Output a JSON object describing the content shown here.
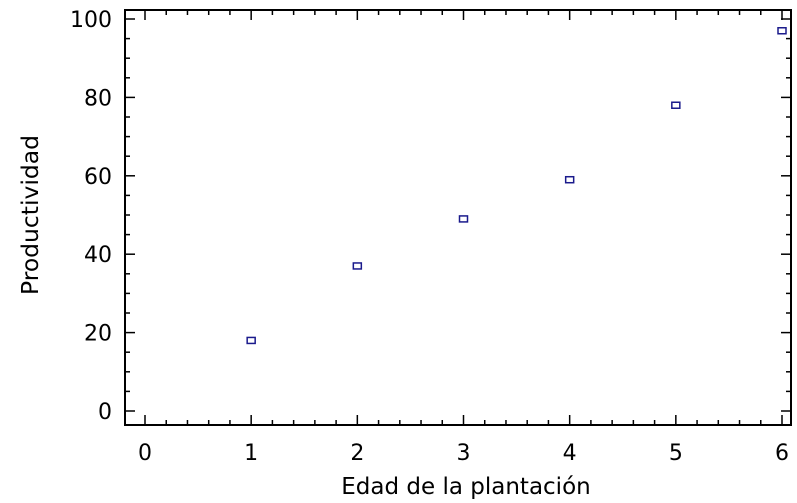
{
  "chart_data": {
    "type": "scatter",
    "title": "",
    "xlabel": "Edad de la plantación",
    "ylabel": "Productividad",
    "xlim": [
      0,
      6
    ],
    "ylim": [
      0,
      100
    ],
    "x_ticks": [
      "0",
      "1",
      "2",
      "3",
      "4",
      "5",
      "6"
    ],
    "y_ticks": [
      "0",
      "20",
      "40",
      "60",
      "80",
      "100"
    ],
    "grid": false,
    "legend": "none",
    "marker": "square-open",
    "marker_color": "#1a1a8c",
    "points": [
      {
        "x": 1,
        "y": 18
      },
      {
        "x": 2,
        "y": 37
      },
      {
        "x": 3,
        "y": 49
      },
      {
        "x": 4,
        "y": 59
      },
      {
        "x": 5,
        "y": 78
      },
      {
        "x": 6,
        "y": 97
      }
    ]
  }
}
